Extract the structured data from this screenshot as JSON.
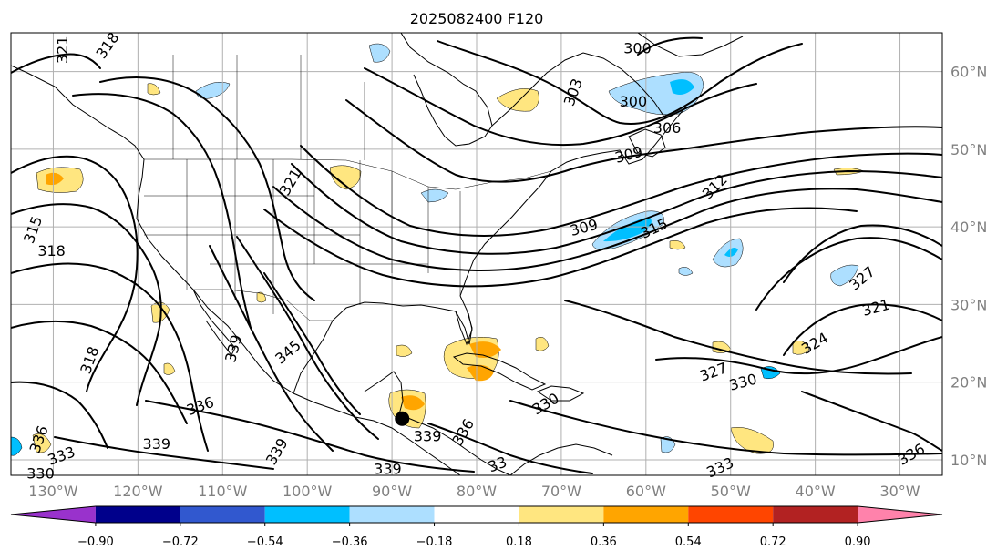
{
  "title": "2025082400 F120",
  "map": {
    "lon_range": [
      -135,
      -25
    ],
    "lat_range": [
      8,
      65
    ],
    "lon_ticks": [
      {
        "lon": -130,
        "label": "130°W"
      },
      {
        "lon": -120,
        "label": "120°W"
      },
      {
        "lon": -110,
        "label": "110°W"
      },
      {
        "lon": -100,
        "label": "100°W"
      },
      {
        "lon": -90,
        "label": "90°W"
      },
      {
        "lon": -80,
        "label": "80°W"
      },
      {
        "lon": -70,
        "label": "70°W"
      },
      {
        "lon": -60,
        "label": "60°W"
      },
      {
        "lon": -50,
        "label": "50°W"
      },
      {
        "lon": -40,
        "label": "40°W"
      },
      {
        "lon": -30,
        "label": "30°W"
      }
    ],
    "lat_ticks": [
      {
        "lat": 60,
        "label": "60°N"
      },
      {
        "lat": 50,
        "label": "50°N"
      },
      {
        "lat": 40,
        "label": "40°N"
      },
      {
        "lat": 30,
        "label": "30°N"
      },
      {
        "lat": 20,
        "label": "20°N"
      },
      {
        "lat": 10,
        "label": "10°N"
      }
    ],
    "marker": {
      "lon": -88.8,
      "lat": 15.3,
      "color": "#000000"
    }
  },
  "contour_labels": [
    {
      "text": "321",
      "lon": -128.8,
      "lat": 62.8,
      "rot": -90
    },
    {
      "text": "318",
      "lon": -123.5,
      "lat": 63.3,
      "rot": -55
    },
    {
      "text": "300",
      "lon": -61,
      "lat": 62.9,
      "rot": 0
    },
    {
      "text": "303",
      "lon": -68.5,
      "lat": 57.3,
      "rot": -70
    },
    {
      "text": "300",
      "lon": -61.5,
      "lat": 56,
      "rot": 0
    },
    {
      "text": "306",
      "lon": -57.5,
      "lat": 52.6,
      "rot": 0
    },
    {
      "text": "309",
      "lon": -62,
      "lat": 49.2,
      "rot": -15
    },
    {
      "text": "312",
      "lon": -51.8,
      "lat": 45.1,
      "rot": -45
    },
    {
      "text": "309",
      "lon": -67.3,
      "lat": 39.8,
      "rot": -15
    },
    {
      "text": "315",
      "lon": -59,
      "lat": 39.7,
      "rot": -25
    },
    {
      "text": "315",
      "lon": -132.3,
      "lat": 39.6,
      "rot": -70
    },
    {
      "text": "318",
      "lon": -130.2,
      "lat": 36.8,
      "rot": 0
    },
    {
      "text": "321",
      "lon": -101.9,
      "lat": 45.7,
      "rot": -60
    },
    {
      "text": "327",
      "lon": -34.4,
      "lat": 33.3,
      "rot": -40
    },
    {
      "text": "321",
      "lon": -32.8,
      "lat": 29.5,
      "rot": -15
    },
    {
      "text": "324",
      "lon": -40,
      "lat": 24.9,
      "rot": -30
    },
    {
      "text": "318",
      "lon": -125.6,
      "lat": 22.8,
      "rot": -70
    },
    {
      "text": "339",
      "lon": -108.6,
      "lat": 24.3,
      "rot": -75
    },
    {
      "text": "345",
      "lon": -102.2,
      "lat": 23.8,
      "rot": -40
    },
    {
      "text": "327",
      "lon": -52,
      "lat": 21.2,
      "rot": -20
    },
    {
      "text": "330",
      "lon": -48.5,
      "lat": 19.9,
      "rot": -15
    },
    {
      "text": "330",
      "lon": -71.8,
      "lat": 17.1,
      "rot": -30
    },
    {
      "text": "336",
      "lon": -112.6,
      "lat": 16.8,
      "rot": -20
    },
    {
      "text": "336",
      "lon": -81.5,
      "lat": 13.5,
      "rot": -60
    },
    {
      "text": "339",
      "lon": -85.8,
      "lat": 12.9,
      "rot": 0
    },
    {
      "text": "339",
      "lon": -117.8,
      "lat": 11.9,
      "rot": 0
    },
    {
      "text": "339",
      "lon": -103.5,
      "lat": 11,
      "rot": -60
    },
    {
      "text": "339",
      "lon": -90.5,
      "lat": 8.7,
      "rot": 0
    },
    {
      "text": "33",
      "lon": -77.5,
      "lat": 9.3,
      "rot": -20
    },
    {
      "text": "333",
      "lon": -51.2,
      "lat": 8.9,
      "rot": -25
    },
    {
      "text": "336",
      "lon": -28.6,
      "lat": 10.6,
      "rot": -30
    },
    {
      "text": "333",
      "lon": -129,
      "lat": 10.4,
      "rot": -20
    },
    {
      "text": "336",
      "lon": -131.6,
      "lat": 12.6,
      "rot": -70
    },
    {
      "text": "330",
      "lon": -131.5,
      "lat": 8.1,
      "rot": 0
    }
  ],
  "colorbar": {
    "colors": [
      "#9932CC",
      "#00008B",
      "#3158CF",
      "#00BFFF",
      "#ADDFFF",
      "#FFFFFF",
      "#FFE680",
      "#FFA500",
      "#FF4500",
      "#B22222",
      "#FF82AB"
    ],
    "levels": [
      -0.9,
      -0.72,
      -0.54,
      -0.36,
      -0.18,
      0.18,
      0.36,
      0.54,
      0.72,
      0.9
    ],
    "tick_labels": [
      "−0.90",
      "−0.72",
      "−0.54",
      "−0.36",
      "−0.18",
      "0.18",
      "0.36",
      "0.54",
      "0.72",
      "0.90"
    ]
  }
}
